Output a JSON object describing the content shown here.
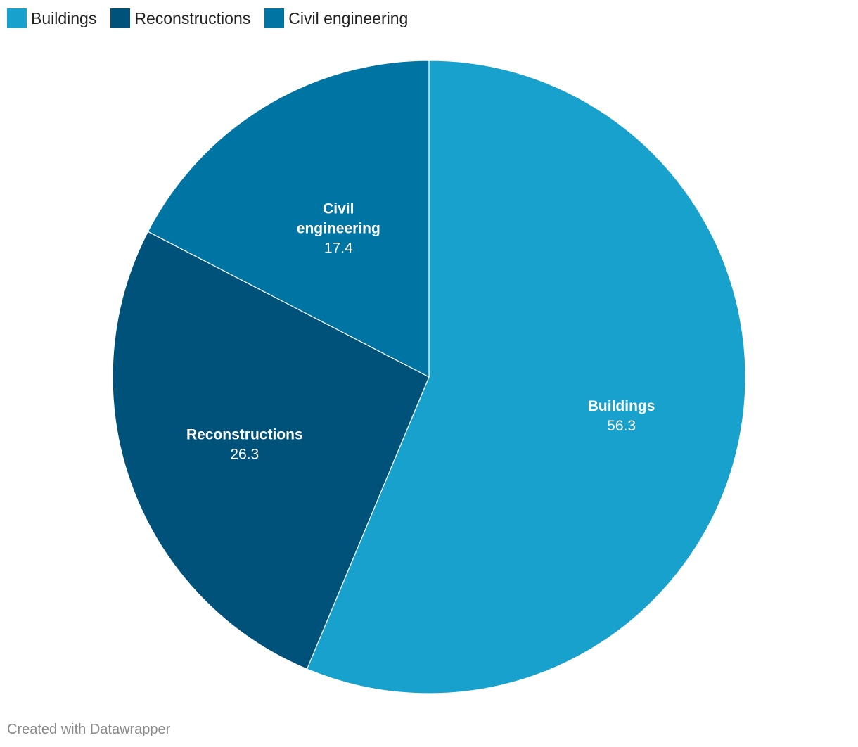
{
  "chart_data": {
    "type": "pie",
    "slices": [
      {
        "name": "Buildings",
        "value": 56.3,
        "value_label": "56.3",
        "label_lines": [
          "Buildings"
        ],
        "color": "#18a1cd"
      },
      {
        "name": "Reconstructions",
        "value": 26.3,
        "value_label": "26.3",
        "label_lines": [
          "Reconstructions"
        ],
        "color": "#00527b"
      },
      {
        "name": "Civil engineering",
        "value": 17.4,
        "value_label": "17.4",
        "label_lines": [
          "Civil",
          "engineering"
        ],
        "color": "#0075a3"
      }
    ],
    "start_angle": "12 o'clock",
    "direction": "clockwise",
    "legend_placement": "top-left"
  },
  "legend": {
    "items": [
      {
        "label": "Buildings",
        "color": "#18a1cd"
      },
      {
        "label": "Reconstructions",
        "color": "#00527b"
      },
      {
        "label": "Civil engineering",
        "color": "#0075a3"
      }
    ]
  },
  "footer": {
    "credit": "Created with Datawrapper"
  }
}
